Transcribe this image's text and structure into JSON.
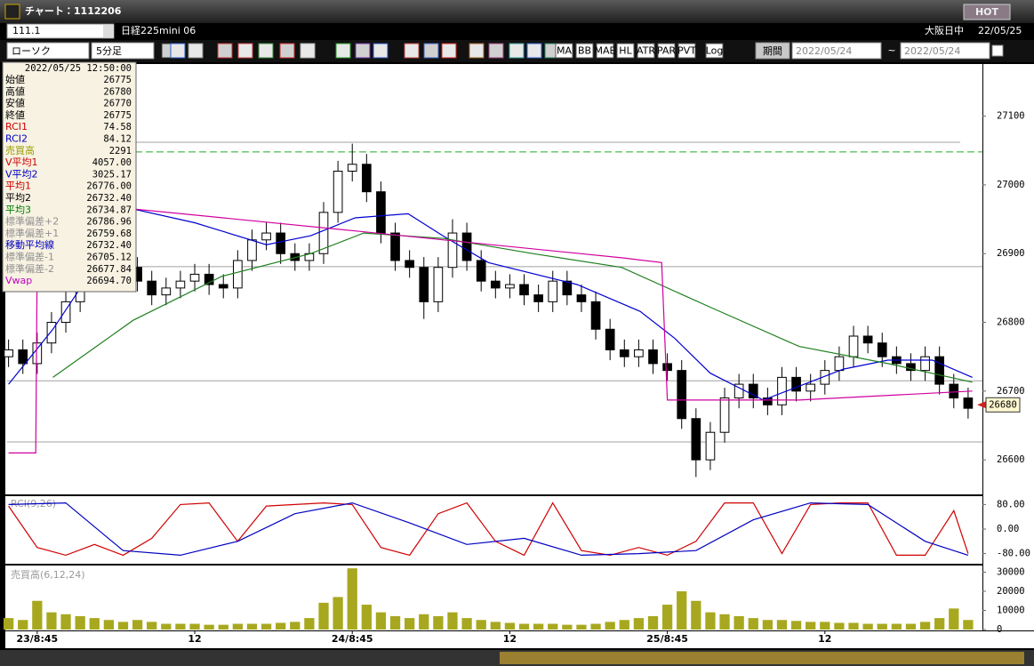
{
  "window": {
    "title": "チャート：1112206",
    "hot": "HOT"
  },
  "toolbar": {
    "symbol": "111.1",
    "name": "日経225mini 06",
    "session": "大阪日中",
    "date": "22/05/25",
    "chart_style": "ローソク",
    "interval": "5分足",
    "period_label": "期間",
    "from": "2022/05/24",
    "tilde": "~",
    "to": "2022/05/24",
    "buttons": [
      "MA",
      "BB",
      "MAE",
      "HL",
      "ATR",
      "PAR",
      "PVT",
      "Log"
    ]
  },
  "info_panel": {
    "datetime": "2022/05/25 12:50:00",
    "rows": [
      {
        "label": "始値",
        "value": "26775",
        "color": "#000000"
      },
      {
        "label": "高値",
        "value": "26780",
        "color": "#000000"
      },
      {
        "label": "安値",
        "value": "26770",
        "color": "#000000"
      },
      {
        "label": "終値",
        "value": "26775",
        "color": "#000000"
      },
      {
        "label": "RCI1",
        "value": "74.58",
        "color": "#d00000"
      },
      {
        "label": "RCI2",
        "value": "84.12",
        "color": "#0000c0"
      },
      {
        "label": "売買高",
        "value": "2291",
        "color": "#9a9a00"
      },
      {
        "label": "V平均1",
        "value": "4057.00",
        "color": "#d00000"
      },
      {
        "label": "V平均2",
        "value": "3025.17",
        "color": "#0000c0"
      },
      {
        "label": "平均1",
        "value": "26776.00",
        "color": "#d00000"
      },
      {
        "label": "平均2",
        "value": "26732.40",
        "color": "#000000"
      },
      {
        "label": "平均3",
        "value": "26734.87",
        "color": "#008000"
      },
      {
        "label": "標準偏差+2",
        "value": "26786.96",
        "color": "#909090"
      },
      {
        "label": "標準偏差+1",
        "value": "26759.68",
        "color": "#909090"
      },
      {
        "label": "移動平均線",
        "value": "26732.40",
        "color": "#0000c0"
      },
      {
        "label": "標準偏差-1",
        "value": "26705.12",
        "color": "#909090"
      },
      {
        "label": "標準偏差-2",
        "value": "26677.84",
        "color": "#909090"
      },
      {
        "label": "Vwap",
        "value": "26694.70",
        "color": "#c000c0"
      }
    ]
  },
  "chart_data": [
    {
      "type": "candlestick",
      "xlim": [
        -0.1,
        68
      ],
      "ylim": [
        26551,
        27172
      ],
      "yticks": [
        26600,
        26700,
        26800,
        26900,
        27000,
        27100
      ],
      "up_color": "#ffffff",
      "down_color": "#000000",
      "open": [
        26750,
        26760,
        26740,
        26770,
        26800,
        26830,
        26860,
        26880,
        26900,
        26880,
        26860,
        26840,
        26850,
        26860,
        26870,
        26855,
        26850,
        26890,
        26920,
        26930,
        26900,
        26890,
        26900,
        26960,
        27020,
        27030,
        26990,
        26930,
        26890,
        26880,
        26830,
        26880,
        26930,
        26890,
        26860,
        26850,
        26855,
        26840,
        26830,
        26860,
        26840,
        26830,
        26790,
        26760,
        26750,
        26760,
        26740,
        26730,
        26660,
        26600,
        26640,
        26690,
        26710,
        26690,
        26680,
        26720,
        26700,
        26710,
        26730,
        26750,
        26780,
        26770,
        26750,
        26740,
        26730,
        26750,
        26710,
        26690
      ],
      "high": [
        26775,
        26775,
        26785,
        26815,
        26845,
        26875,
        26895,
        26915,
        26915,
        26895,
        26875,
        26865,
        26875,
        26885,
        26885,
        26870,
        26905,
        26935,
        26945,
        26945,
        26915,
        26915,
        26975,
        27035,
        27060,
        27045,
        27005,
        26945,
        26905,
        26895,
        26895,
        26950,
        26945,
        26905,
        26875,
        26870,
        26870,
        26855,
        26875,
        26875,
        26855,
        26845,
        26805,
        26775,
        26775,
        26775,
        26755,
        26745,
        26675,
        26655,
        26705,
        26725,
        26725,
        26705,
        26735,
        26735,
        26725,
        26745,
        26765,
        26795,
        26795,
        26785,
        26765,
        26755,
        26765,
        26765,
        26725,
        26705
      ],
      "low": [
        26735,
        26725,
        26725,
        26755,
        26785,
        26815,
        26845,
        26865,
        26865,
        26845,
        26825,
        26825,
        26835,
        26845,
        26840,
        26835,
        26835,
        26875,
        26905,
        26885,
        26875,
        26875,
        26885,
        26945,
        27005,
        26975,
        26915,
        26875,
        26865,
        26805,
        26815,
        26865,
        26875,
        26845,
        26835,
        26835,
        26825,
        26815,
        26815,
        26825,
        26815,
        26775,
        26745,
        26735,
        26735,
        26725,
        26715,
        26645,
        26575,
        26585,
        26625,
        26675,
        26675,
        26665,
        26665,
        26685,
        26685,
        26695,
        26715,
        26735,
        26755,
        26735,
        26725,
        26715,
        26715,
        26695,
        26675,
        26660
      ],
      "close": [
        26760,
        26740,
        26770,
        26800,
        26830,
        26860,
        26880,
        26900,
        26880,
        26860,
        26840,
        26850,
        26860,
        26870,
        26855,
        26850,
        26890,
        26920,
        26930,
        26900,
        26890,
        26900,
        26960,
        27020,
        27030,
        26990,
        26930,
        26890,
        26880,
        26830,
        26880,
        26930,
        26890,
        26860,
        26850,
        26855,
        26840,
        26830,
        26860,
        26840,
        26830,
        26790,
        26760,
        26750,
        26760,
        26740,
        26730,
        26660,
        26600,
        26640,
        26690,
        26710,
        26690,
        26680,
        26720,
        26700,
        26710,
        26730,
        26750,
        26780,
        26770,
        26750,
        26740,
        26730,
        26750,
        26710,
        26690,
        26675
      ],
      "series": [
        {
          "name": "平均2",
          "color": "#0000d0",
          "x": [
            0,
            3.1,
            8.7,
            13,
            18,
            21.1,
            24.2,
            27.9,
            30.4,
            33.5,
            39.7,
            44.1,
            46.5,
            49,
            52.7,
            58.3,
            61.4,
            64.5,
            67.3
          ],
          "values": [
            26710,
            26790,
            26965,
            26945,
            26913,
            26926,
            26952,
            26958,
            26925,
            26887,
            26855,
            26816,
            26777,
            26726,
            26687,
            26732,
            26745,
            26745,
            26720
          ]
        },
        {
          "name": "平均3",
          "color": "#208020",
          "x": [
            3.1,
            8.7,
            14.9,
            21.1,
            24.8,
            30.4,
            36.6,
            42.8,
            49,
            55.2,
            61.4,
            67.3
          ],
          "values": [
            26720,
            26803,
            26867,
            26900,
            26930,
            26922,
            26900,
            26880,
            26822,
            26765,
            26740,
            26713
          ]
        },
        {
          "name": "Vwap",
          "color": "#d000a0",
          "x": [
            0,
            1.9,
            2,
            8.7,
            24.2,
            30.4,
            42.8,
            45.6,
            46,
            55.2,
            67.3
          ],
          "values": [
            26610,
            26610,
            26880,
            26965,
            26933,
            26920,
            26894,
            26887,
            26687,
            26687,
            26700
          ]
        }
      ],
      "reference_lines": [
        {
          "value": 27062,
          "color": "#a0a0a0",
          "dashed": false
        },
        {
          "value": 27048,
          "color": "#22aa22",
          "dashed": true
        },
        {
          "value": 26881,
          "color": "#a0a0a0",
          "dashed": false
        },
        {
          "value": 26715,
          "color": "#a0a0a0",
          "dashed": false
        },
        {
          "value": 26626,
          "color": "#a0a0a0",
          "dashed": false
        }
      ],
      "last_price": 26680
    },
    {
      "type": "line",
      "title": "RCI(9,26)",
      "xlim": [
        -0.1,
        68
      ],
      "ylim": [
        -110,
        110
      ],
      "yticks": [
        {
          "value": 80,
          "label": "80.00"
        },
        {
          "value": 0,
          "label": "0.00"
        },
        {
          "value": -80,
          "label": "-80.00"
        }
      ],
      "series": [
        {
          "name": "RCI1",
          "color": "#d00000",
          "x": [
            0,
            2,
            4,
            6,
            8,
            10,
            12,
            14,
            16,
            18,
            20,
            22,
            24,
            26,
            28,
            30,
            32,
            34,
            36,
            38,
            40,
            42,
            44,
            46,
            48,
            50,
            52,
            54,
            56,
            58,
            60,
            62,
            64,
            66,
            67
          ],
          "values": [
            75,
            -60,
            -85,
            -50,
            -85,
            -30,
            80,
            85,
            -40,
            75,
            80,
            85,
            80,
            -60,
            -85,
            50,
            85,
            -40,
            -85,
            85,
            -70,
            -85,
            -60,
            -85,
            -40,
            85,
            85,
            -80,
            80,
            85,
            85,
            -85,
            -85,
            60,
            -80
          ]
        },
        {
          "name": "RCI2",
          "color": "#0000c0",
          "x": [
            0,
            4,
            8,
            12,
            16,
            20,
            24,
            28,
            32,
            36,
            40,
            44,
            48,
            52,
            56,
            60,
            64,
            67
          ],
          "values": [
            80,
            85,
            -70,
            -85,
            -40,
            50,
            85,
            20,
            -50,
            -30,
            -85,
            -80,
            -70,
            30,
            85,
            80,
            -40,
            -85
          ]
        }
      ]
    },
    {
      "type": "bar",
      "title": "売買高(6,12,24)",
      "color": "#a8a820",
      "xlim": [
        -0.1,
        68
      ],
      "ylim": [
        0,
        33000
      ],
      "yticks": [
        0,
        10000,
        20000,
        30000
      ],
      "xticks": [
        {
          "value": 2,
          "label": "23/8:45"
        },
        {
          "value": 13,
          "label": "12"
        },
        {
          "value": 24,
          "label": "24/8:45"
        },
        {
          "value": 35,
          "label": "12"
        },
        {
          "value": 46,
          "label": "25/8:45"
        },
        {
          "value": 57,
          "label": "12"
        }
      ],
      "values": [
        6000,
        5000,
        15000,
        9000,
        8000,
        7000,
        6000,
        5000,
        4000,
        5000,
        4000,
        3000,
        3000,
        3000,
        2500,
        2500,
        3000,
        3000,
        3000,
        3500,
        4000,
        6000,
        14000,
        17000,
        32000,
        13000,
        9000,
        7000,
        6000,
        8000,
        7000,
        9000,
        6000,
        5000,
        4000,
        3500,
        3000,
        3000,
        3000,
        2500,
        2500,
        3000,
        4000,
        5000,
        6000,
        7000,
        13000,
        20000,
        15000,
        9000,
        8000,
        7000,
        6000,
        5000,
        5000,
        4500,
        4000,
        4000,
        3500,
        3500,
        3000,
        3000,
        3000,
        3000,
        4000,
        6000,
        11000,
        5000
      ]
    }
  ]
}
